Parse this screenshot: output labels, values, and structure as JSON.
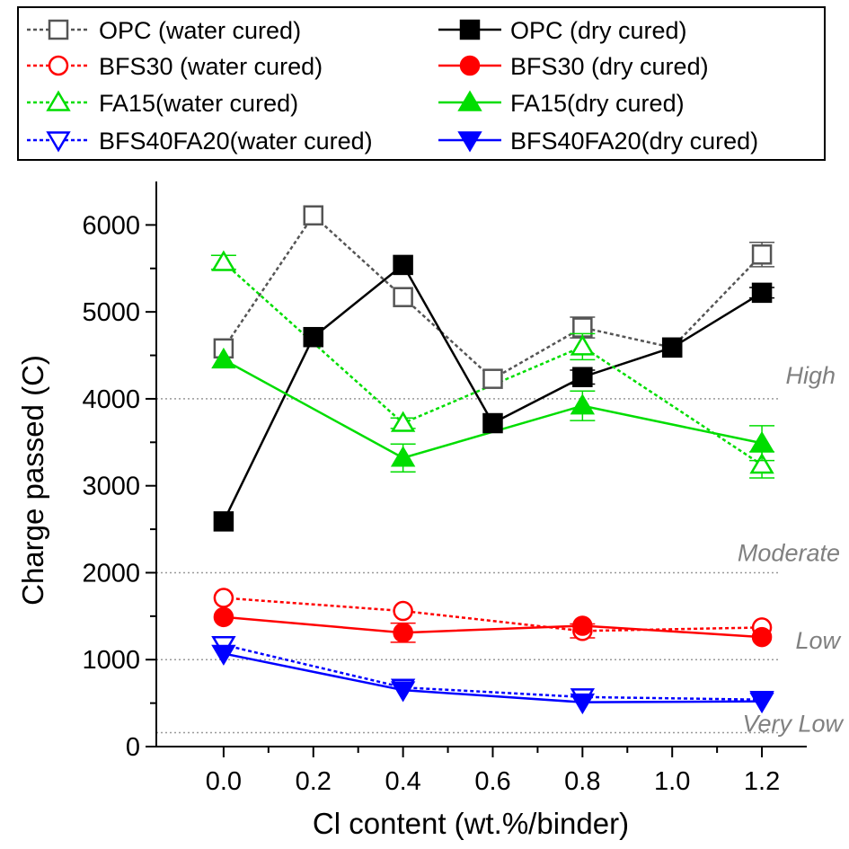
{
  "chart_data": {
    "type": "line",
    "title": "",
    "xlabel": "Cl content (wt.%/binder)",
    "ylabel": "Charge passed (C)",
    "xlim": [
      -0.15,
      1.3
    ],
    "ylim": [
      0,
      6500
    ],
    "xticks": [
      0.0,
      0.2,
      0.4,
      0.6,
      0.8,
      1.0,
      1.2
    ],
    "xtick_labels": [
      "0.0",
      "0.2",
      "0.4",
      "0.6",
      "0.8",
      "1.0",
      "1.2"
    ],
    "yticks": [
      0,
      1000,
      2000,
      3000,
      4000,
      5000,
      6000
    ],
    "ytick_labels": [
      "0",
      "1000",
      "2000",
      "3000",
      "4000",
      "5000",
      "6000"
    ],
    "grid": false,
    "legend_position": "top",
    "reference_lines": [
      {
        "label": "High",
        "y": 4000
      },
      {
        "label": "Moderate",
        "y": 2000
      },
      {
        "label": "Low",
        "y": 1000
      },
      {
        "label": "Very Low",
        "y": 160
      }
    ],
    "series": [
      {
        "name": "OPC (water cured)",
        "color": "#555555",
        "dash": true,
        "marker": "square-open",
        "x": [
          0.0,
          0.2,
          0.4,
          0.6,
          0.8,
          1.0,
          1.2
        ],
        "y": [
          4580,
          6110,
          5170,
          4230,
          4820,
          4590,
          5660
        ],
        "err": [
          40,
          40,
          40,
          40,
          120,
          40,
          140
        ]
      },
      {
        "name": "OPC (dry cured)",
        "color": "#000000",
        "dash": false,
        "marker": "square-filled",
        "x": [
          0.0,
          0.2,
          0.4,
          0.6,
          0.8,
          1.0,
          1.2
        ],
        "y": [
          2590,
          4710,
          5540,
          3720,
          4250,
          4590,
          5220
        ],
        "err": [
          40,
          40,
          40,
          40,
          80,
          40,
          60
        ]
      },
      {
        "name": "BFS30 (water cured)",
        "color": "#ff0000",
        "dash": true,
        "marker": "circle-open",
        "x": [
          0.0,
          0.4,
          0.8,
          1.2
        ],
        "y": [
          1710,
          1560,
          1330,
          1370
        ],
        "err": [
          40,
          40,
          80,
          40
        ]
      },
      {
        "name": "BFS30 (dry cured)",
        "color": "#ff0000",
        "dash": false,
        "marker": "circle-filled",
        "x": [
          0.0,
          0.4,
          0.8,
          1.2
        ],
        "y": [
          1490,
          1310,
          1390,
          1260
        ],
        "err": [
          40,
          110,
          40,
          40
        ]
      },
      {
        "name": "FA15(water cured)",
        "color": "#00dd00",
        "dash": true,
        "marker": "triangle-up-open",
        "x": [
          0.0,
          0.4,
          0.8,
          1.2
        ],
        "y": [
          5570,
          3720,
          4600,
          3240
        ],
        "err": [
          80,
          60,
          150,
          150
        ]
      },
      {
        "name": "FA15(dry cured)",
        "color": "#00dd00",
        "dash": false,
        "marker": "triangle-up-filled",
        "x": [
          0.0,
          0.4,
          0.8,
          1.2
        ],
        "y": [
          4450,
          3320,
          3920,
          3490
        ],
        "err": [
          40,
          160,
          170,
          200
        ]
      },
      {
        "name": "BFS40FA20(water cured)",
        "color": "#0000ff",
        "dash": true,
        "marker": "triangle-down-open",
        "x": [
          0.0,
          0.4,
          0.8,
          1.2
        ],
        "y": [
          1170,
          680,
          570,
          540
        ],
        "err": [
          40,
          40,
          40,
          40
        ]
      },
      {
        "name": "BFS40FA20(dry cured)",
        "color": "#0000ff",
        "dash": false,
        "marker": "triangle-down-filled",
        "x": [
          0.0,
          0.4,
          0.8,
          1.2
        ],
        "y": [
          1070,
          650,
          510,
          520
        ],
        "err": [
          40,
          40,
          40,
          40
        ]
      }
    ]
  }
}
